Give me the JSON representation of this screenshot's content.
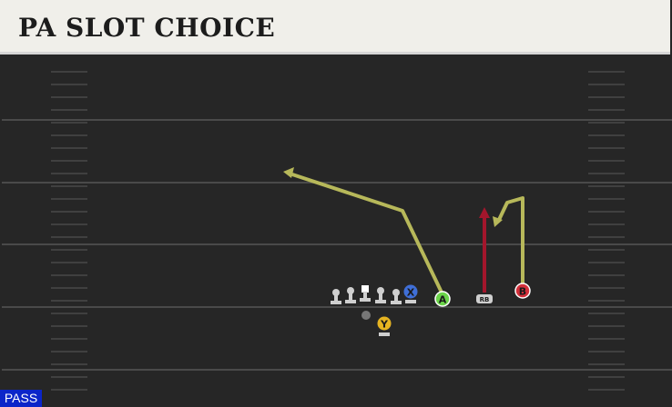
{
  "header": {
    "title": "PA SLOT CHOICE"
  },
  "colors": {
    "field": "#262626",
    "yardline": "#4a4a4a",
    "hash": "#3f3f3f",
    "route_yellow": "#b7b85a",
    "route_red": "#a3162c",
    "receiver_a": "#6bd44a",
    "receiver_b": "#d32f3a",
    "receiver_x": "#3f6fd8",
    "receiver_y": "#e6b421",
    "lineman": "#cfcfcf",
    "qb": "#777777"
  },
  "players": {
    "x_label": "X",
    "a_label": "A",
    "b_label": "B",
    "y_label": "Y",
    "rb_label": "RB"
  },
  "play_type": {
    "label": "PASS"
  }
}
